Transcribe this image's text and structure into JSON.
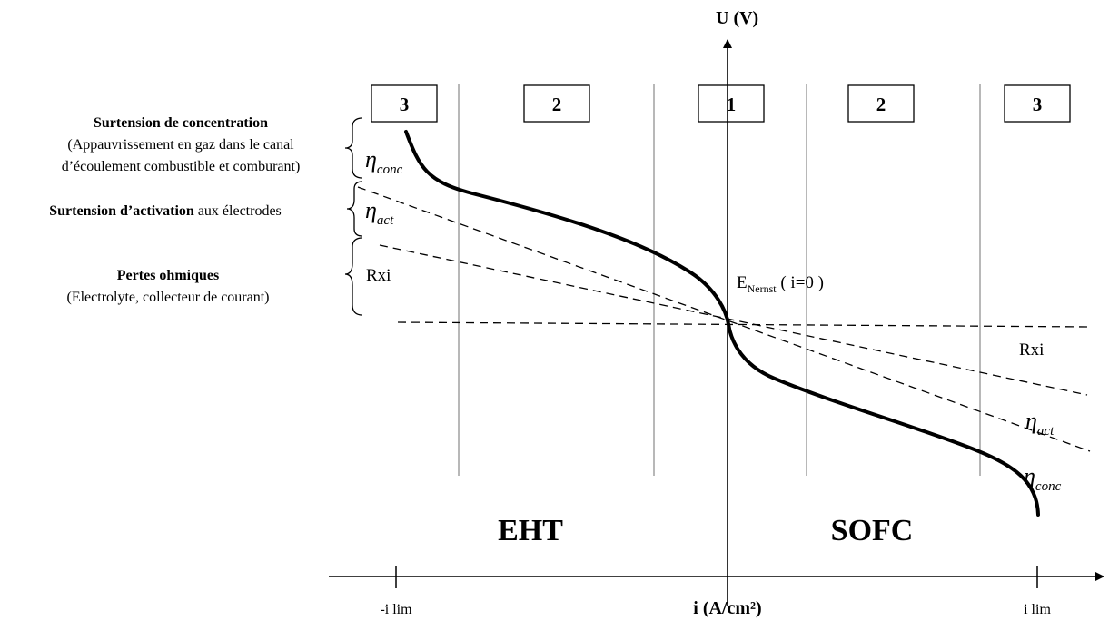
{
  "axes": {
    "y_label": "U (V)",
    "x_label": "i (A/cm²)",
    "x_min_label": "-i lim",
    "x_max_label": "i lim"
  },
  "zones": [
    "3",
    "2",
    "1",
    "2",
    "3"
  ],
  "left_annotations": {
    "concentration": {
      "title": "Surtension de concentration",
      "line1": "(Appauvrissement en  gaz dans le canal",
      "line2": "d’écoulement combustible et comburant)"
    },
    "activation": {
      "title": "Surtension d’activation",
      "rest": " aux électrodes"
    },
    "ohmic": {
      "title": "Pertes ohmiques",
      "line1": "(Electrolyte, collecteur de courant)"
    }
  },
  "symbols": {
    "eta": "η",
    "conc_sub": "conc",
    "act_sub": "act",
    "rxi": "Rxi"
  },
  "nernst": {
    "e": "E",
    "sub": "Nernst",
    "rest": " ( i=0 )"
  },
  "regions": {
    "left": "EHT",
    "right": "SOFC"
  }
}
